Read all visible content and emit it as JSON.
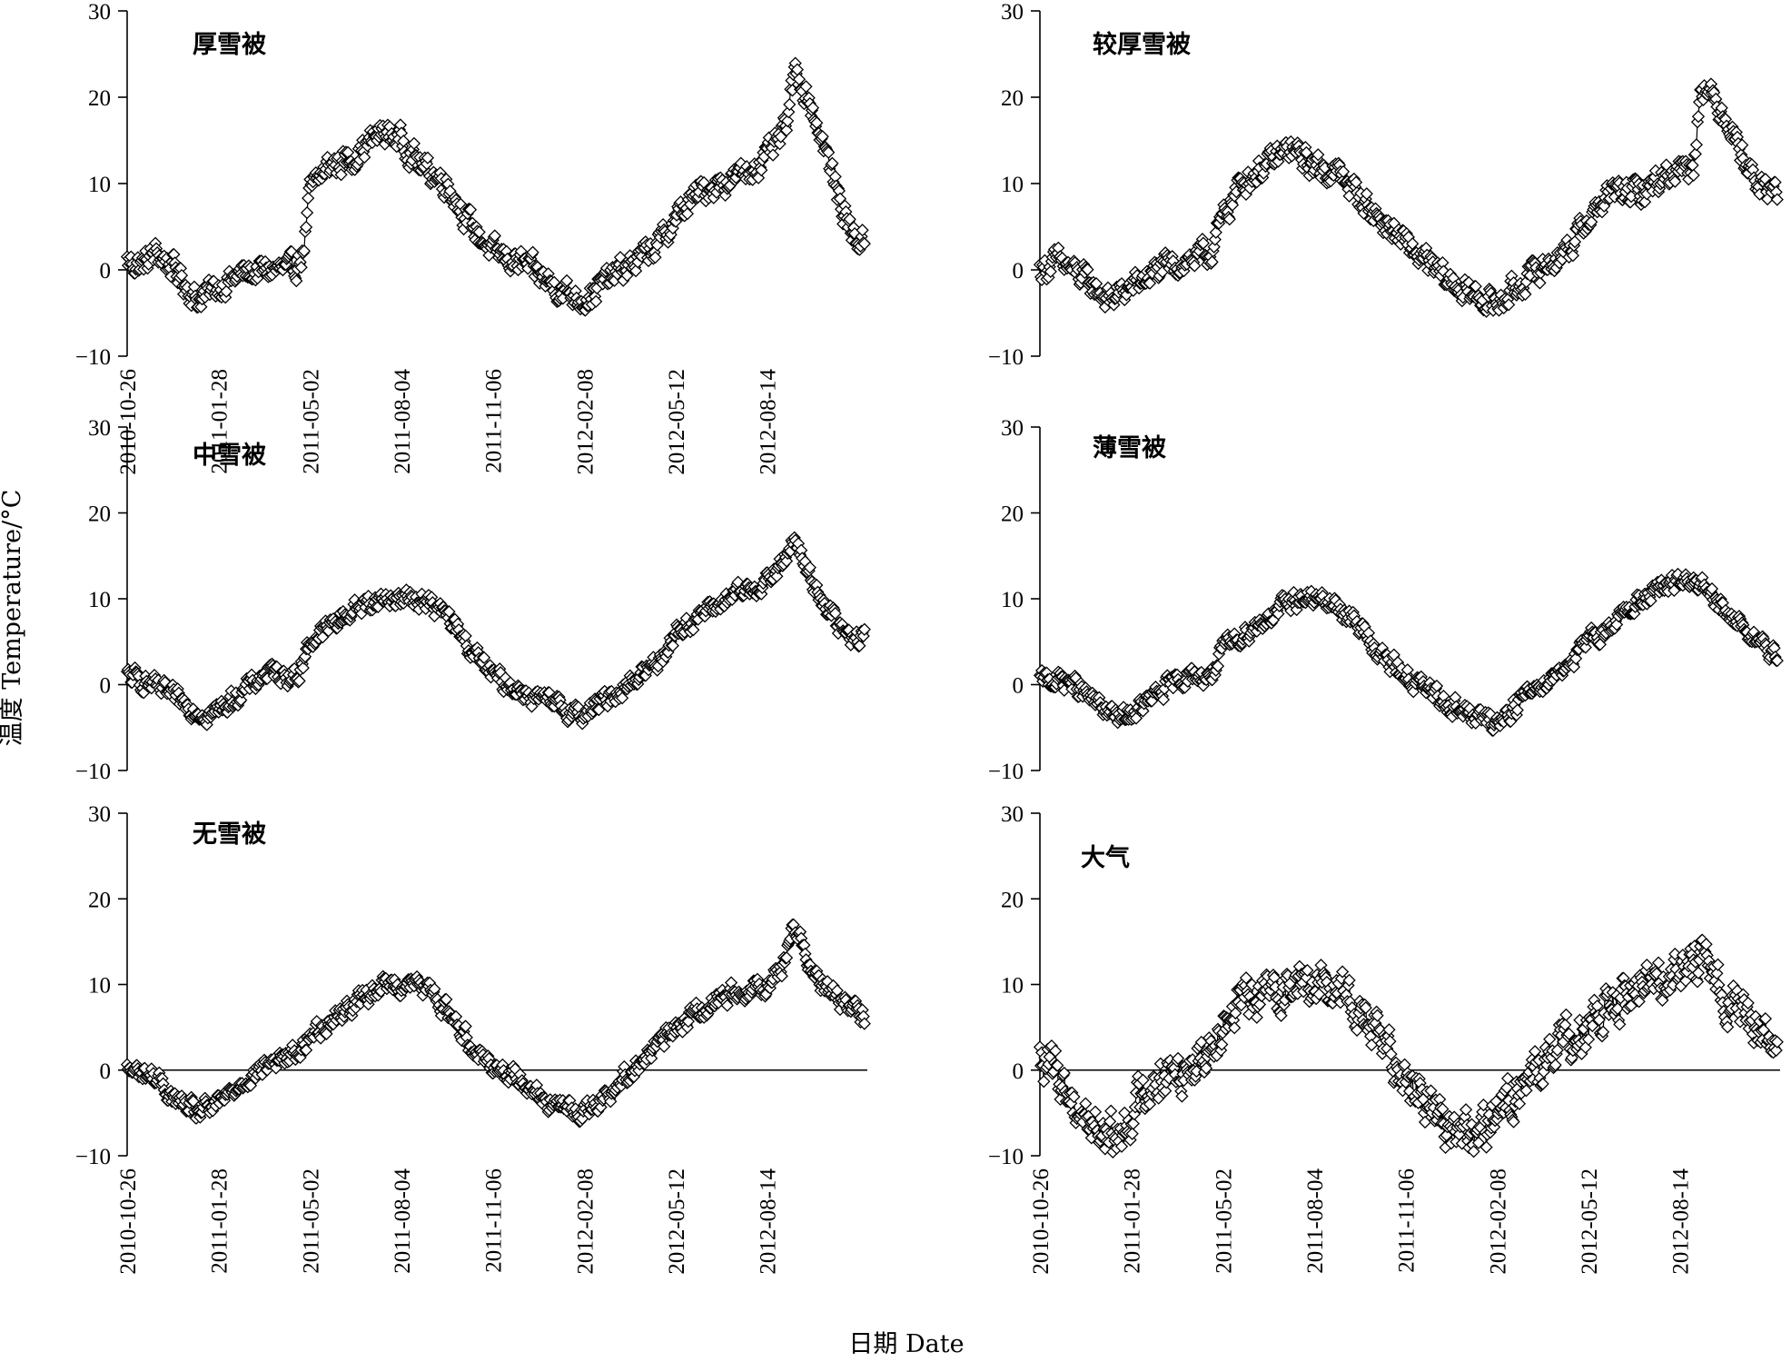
{
  "figure": {
    "ylabel": "温度 Temperature/°C",
    "xlabel": "日期 Date"
  },
  "chart_data": [
    {
      "type": "line",
      "title": "厚雪被",
      "ylim": [
        -10,
        30
      ],
      "yticks": [
        -10,
        0,
        10,
        20,
        30
      ],
      "xticks": [
        "2010-10-26",
        "2011-01-28",
        "2011-05-02",
        "2011-08-04",
        "2011-11-06",
        "2012-02-08",
        "2012-05-12",
        "2012-08-14"
      ],
      "x_range": [
        "2010-10-26",
        "2012-11-25"
      ],
      "zero_line": false,
      "anchors": [
        [
          "2010-10-26",
          1
        ],
        [
          "2010-11-10",
          0.5
        ],
        [
          "2010-11-25",
          2
        ],
        [
          "2010-12-15",
          0
        ],
        [
          "2011-01-05",
          -3.5
        ],
        [
          "2011-01-28",
          -2
        ],
        [
          "2011-02-20",
          -0.5
        ],
        [
          "2011-03-20",
          0
        ],
        [
          "2011-04-15",
          0
        ],
        [
          "2011-04-25",
          2
        ],
        [
          "2011-05-02",
          9
        ],
        [
          "2011-05-20",
          12
        ],
        [
          "2011-06-15",
          13
        ],
        [
          "2011-07-15",
          16
        ],
        [
          "2011-08-04",
          15
        ],
        [
          "2011-08-25",
          12
        ],
        [
          "2011-09-20",
          10
        ],
        [
          "2011-10-15",
          5
        ],
        [
          "2011-11-06",
          2
        ],
        [
          "2011-12-10",
          0.5
        ],
        [
          "2012-01-10",
          -2
        ],
        [
          "2012-02-08",
          -3.5
        ],
        [
          "2012-03-05",
          -1
        ],
        [
          "2012-04-01",
          1
        ],
        [
          "2012-04-25",
          3
        ],
        [
          "2012-05-12",
          6
        ],
        [
          "2012-06-05",
          9
        ],
        [
          "2012-06-25",
          10
        ],
        [
          "2012-07-20",
          11
        ],
        [
          "2012-08-14",
          13
        ],
        [
          "2012-09-01",
          16
        ],
        [
          "2012-09-12",
          23
        ],
        [
          "2012-09-25",
          20
        ],
        [
          "2012-10-10",
          15
        ],
        [
          "2012-10-25",
          9
        ],
        [
          "2012-11-10",
          4
        ],
        [
          "2012-11-22",
          3
        ]
      ]
    },
    {
      "type": "line",
      "title": "较厚雪被",
      "ylim": [
        -10,
        30
      ],
      "yticks": [
        -10,
        0,
        10,
        20,
        30
      ],
      "xticks": [],
      "x_range": [
        "2010-10-26",
        "2012-11-25"
      ],
      "zero_line": false,
      "anchors": [
        [
          "2010-10-26",
          0
        ],
        [
          "2010-11-15",
          1
        ],
        [
          "2010-12-10",
          -1
        ],
        [
          "2011-01-05",
          -3.5
        ],
        [
          "2011-01-28",
          -2
        ],
        [
          "2011-02-25",
          0
        ],
        [
          "2011-03-25",
          1
        ],
        [
          "2011-04-20",
          2
        ],
        [
          "2011-05-02",
          6
        ],
        [
          "2011-05-20",
          10
        ],
        [
          "2011-06-15",
          12
        ],
        [
          "2011-07-10",
          14
        ],
        [
          "2011-08-04",
          12
        ],
        [
          "2011-09-01",
          11
        ],
        [
          "2011-10-01",
          7
        ],
        [
          "2011-11-06",
          3
        ],
        [
          "2011-12-05",
          0
        ],
        [
          "2012-01-05",
          -2.5
        ],
        [
          "2012-02-08",
          -4
        ],
        [
          "2012-03-10",
          -1
        ],
        [
          "2012-04-05",
          1
        ],
        [
          "2012-04-25",
          3
        ],
        [
          "2012-05-12",
          6
        ],
        [
          "2012-06-05",
          9
        ],
        [
          "2012-07-05",
          9
        ],
        [
          "2012-08-14",
          12
        ],
        [
          "2012-08-28",
          12
        ],
        [
          "2012-09-05",
          22
        ],
        [
          "2012-09-15",
          20
        ],
        [
          "2012-09-30",
          18
        ],
        [
          "2012-10-15",
          14
        ],
        [
          "2012-11-01",
          10
        ],
        [
          "2012-11-22",
          9
        ]
      ]
    },
    {
      "type": "line",
      "title": "中雪被",
      "ylim": [
        -10,
        30
      ],
      "yticks": [
        -10,
        0,
        10,
        20,
        30
      ],
      "xticks": [],
      "x_range": [
        "2010-10-26",
        "2012-11-25"
      ],
      "zero_line": false,
      "anchors": [
        [
          "2010-10-26",
          1
        ],
        [
          "2010-11-20",
          0
        ],
        [
          "2010-12-20",
          -2
        ],
        [
          "2011-01-15",
          -3.5
        ],
        [
          "2011-01-28",
          -3
        ],
        [
          "2011-02-20",
          -1
        ],
        [
          "2011-03-20",
          1.5
        ],
        [
          "2011-04-20",
          1
        ],
        [
          "2011-05-02",
          5
        ],
        [
          "2011-05-25",
          7
        ],
        [
          "2011-06-20",
          9
        ],
        [
          "2011-07-15",
          10
        ],
        [
          "2011-08-04",
          10
        ],
        [
          "2011-08-25",
          10
        ],
        [
          "2011-09-20",
          8
        ],
        [
          "2011-10-15",
          4
        ],
        [
          "2011-11-06",
          1
        ],
        [
          "2011-12-10",
          -1
        ],
        [
          "2012-01-10",
          -2.5
        ],
        [
          "2012-02-08",
          -3.5
        ],
        [
          "2012-03-10",
          -1
        ],
        [
          "2012-04-05",
          1
        ],
        [
          "2012-04-25",
          3
        ],
        [
          "2012-05-12",
          6
        ],
        [
          "2012-06-05",
          8
        ],
        [
          "2012-07-05",
          10
        ],
        [
          "2012-08-14",
          12
        ],
        [
          "2012-08-30",
          14
        ],
        [
          "2012-09-10",
          17
        ],
        [
          "2012-09-25",
          13
        ],
        [
          "2012-10-10",
          10
        ],
        [
          "2012-10-25",
          7
        ],
        [
          "2012-11-10",
          5
        ],
        [
          "2012-11-22",
          6
        ]
      ]
    },
    {
      "type": "line",
      "title": "薄雪被",
      "ylim": [
        -10,
        30
      ],
      "yticks": [
        -10,
        0,
        10,
        20,
        30
      ],
      "xticks": [],
      "x_range": [
        "2010-10-26",
        "2012-11-25"
      ],
      "zero_line": false,
      "anchors": [
        [
          "2010-10-26",
          0.5
        ],
        [
          "2010-11-25",
          0.5
        ],
        [
          "2010-12-20",
          -2
        ],
        [
          "2011-01-15",
          -4
        ],
        [
          "2011-01-28",
          -3.5
        ],
        [
          "2011-02-25",
          -1
        ],
        [
          "2011-03-25",
          1
        ],
        [
          "2011-04-20",
          1
        ],
        [
          "2011-05-02",
          4
        ],
        [
          "2011-05-25",
          6
        ],
        [
          "2011-06-20",
          8
        ],
        [
          "2011-07-15",
          10
        ],
        [
          "2011-08-04",
          10
        ],
        [
          "2011-08-30",
          9
        ],
        [
          "2011-09-25",
          6
        ],
        [
          "2011-10-15",
          3
        ],
        [
          "2011-11-06",
          1
        ],
        [
          "2011-12-10",
          -1.5
        ],
        [
          "2012-01-10",
          -3.5
        ],
        [
          "2012-02-08",
          -4.5
        ],
        [
          "2012-03-10",
          -1
        ],
        [
          "2012-04-05",
          1
        ],
        [
          "2012-04-25",
          3
        ],
        [
          "2012-05-12",
          5
        ],
        [
          "2012-06-05",
          7
        ],
        [
          "2012-07-05",
          10
        ],
        [
          "2012-08-14",
          12
        ],
        [
          "2012-08-30",
          12
        ],
        [
          "2012-09-15",
          10
        ],
        [
          "2012-10-05",
          8
        ],
        [
          "2012-10-25",
          6
        ],
        [
          "2012-11-22",
          3
        ]
      ]
    },
    {
      "type": "line",
      "title": "无雪被",
      "ylim": [
        -10,
        30
      ],
      "yticks": [
        -10,
        0,
        10,
        20,
        30
      ],
      "xticks": [
        "2010-10-26",
        "2011-01-28",
        "2011-05-02",
        "2011-08-04",
        "2011-11-06",
        "2012-02-08",
        "2012-05-12",
        "2012-08-14"
      ],
      "x_range": [
        "2010-10-26",
        "2012-11-25"
      ],
      "zero_line": true,
      "anchors": [
        [
          "2010-10-26",
          0
        ],
        [
          "2010-11-20",
          -0.5
        ],
        [
          "2010-12-15",
          -3.5
        ],
        [
          "2011-01-05",
          -5
        ],
        [
          "2011-01-28",
          -4
        ],
        [
          "2011-02-25",
          -1
        ],
        [
          "2011-03-25",
          1
        ],
        [
          "2011-04-20",
          2
        ],
        [
          "2011-05-02",
          4
        ],
        [
          "2011-05-25",
          6
        ],
        [
          "2011-06-20",
          8
        ],
        [
          "2011-07-15",
          10
        ],
        [
          "2011-08-04",
          10
        ],
        [
          "2011-08-25",
          10
        ],
        [
          "2011-09-20",
          7
        ],
        [
          "2011-10-15",
          3
        ],
        [
          "2011-11-06",
          0.5
        ],
        [
          "2011-12-05",
          -1
        ],
        [
          "2012-01-05",
          -4
        ],
        [
          "2012-02-08",
          -5
        ],
        [
          "2012-03-10",
          -2
        ],
        [
          "2012-04-05",
          1
        ],
        [
          "2012-04-25",
          3
        ],
        [
          "2012-05-12",
          5
        ],
        [
          "2012-06-05",
          7
        ],
        [
          "2012-07-05",
          9
        ],
        [
          "2012-08-14",
          10
        ],
        [
          "2012-08-30",
          12
        ],
        [
          "2012-09-10",
          17
        ],
        [
          "2012-09-25",
          13
        ],
        [
          "2012-10-10",
          10
        ],
        [
          "2012-10-30",
          8
        ],
        [
          "2012-11-22",
          6
        ]
      ]
    },
    {
      "type": "line",
      "title": "大气",
      "ylim": [
        -10,
        30
      ],
      "yticks": [
        -10,
        0,
        10,
        20,
        30
      ],
      "xticks": [
        "2010-10-26",
        "2011-01-28",
        "2011-05-02",
        "2011-08-04",
        "2011-11-06",
        "2012-02-08",
        "2012-05-12",
        "2012-08-14"
      ],
      "x_range": [
        "2010-10-26",
        "2012-11-25"
      ],
      "zero_line": true,
      "anchors": [
        [
          "2010-10-26",
          1
        ],
        [
          "2010-11-10",
          0
        ],
        [
          "2010-12-01",
          -4
        ],
        [
          "2010-12-25",
          -7
        ],
        [
          "2011-01-15",
          -8
        ],
        [
          "2011-01-28",
          -5
        ],
        [
          "2011-02-20",
          -1
        ],
        [
          "2011-03-20",
          0
        ],
        [
          "2011-04-15",
          2
        ],
        [
          "2011-05-02",
          6
        ],
        [
          "2011-05-25",
          8
        ],
        [
          "2011-06-20",
          9
        ],
        [
          "2011-07-15",
          10
        ],
        [
          "2011-08-04",
          10
        ],
        [
          "2011-08-30",
          10
        ],
        [
          "2011-09-25",
          6
        ],
        [
          "2011-10-20",
          2
        ],
        [
          "2011-11-06",
          0
        ],
        [
          "2011-12-01",
          -4
        ],
        [
          "2011-12-25",
          -7
        ],
        [
          "2012-01-20",
          -8
        ],
        [
          "2012-02-08",
          -5
        ],
        [
          "2012-03-10",
          -1
        ],
        [
          "2012-04-05",
          2
        ],
        [
          "2012-04-25",
          4
        ],
        [
          "2012-05-12",
          5
        ],
        [
          "2012-06-05",
          7
        ],
        [
          "2012-07-05",
          10
        ],
        [
          "2012-08-14",
          12
        ],
        [
          "2012-08-30",
          13
        ],
        [
          "2012-09-15",
          11
        ],
        [
          "2012-10-05",
          8
        ],
        [
          "2012-10-25",
          6
        ],
        [
          "2012-11-22",
          2
        ]
      ]
    }
  ]
}
